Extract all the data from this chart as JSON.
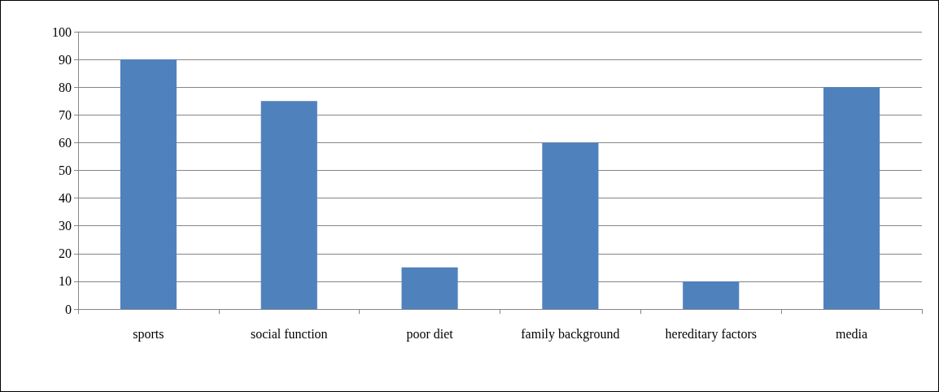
{
  "chart_data": {
    "type": "bar",
    "categories": [
      "sports",
      "social function",
      "poor diet",
      "family background",
      "hereditary factors",
      "media"
    ],
    "values": [
      90,
      75,
      15,
      60,
      10,
      80
    ],
    "color": "#4f81bd",
    "ylim": [
      0,
      100
    ],
    "yticks": [
      0,
      10,
      20,
      30,
      40,
      50,
      60,
      70,
      80,
      90,
      100
    ],
    "grid": "y"
  }
}
